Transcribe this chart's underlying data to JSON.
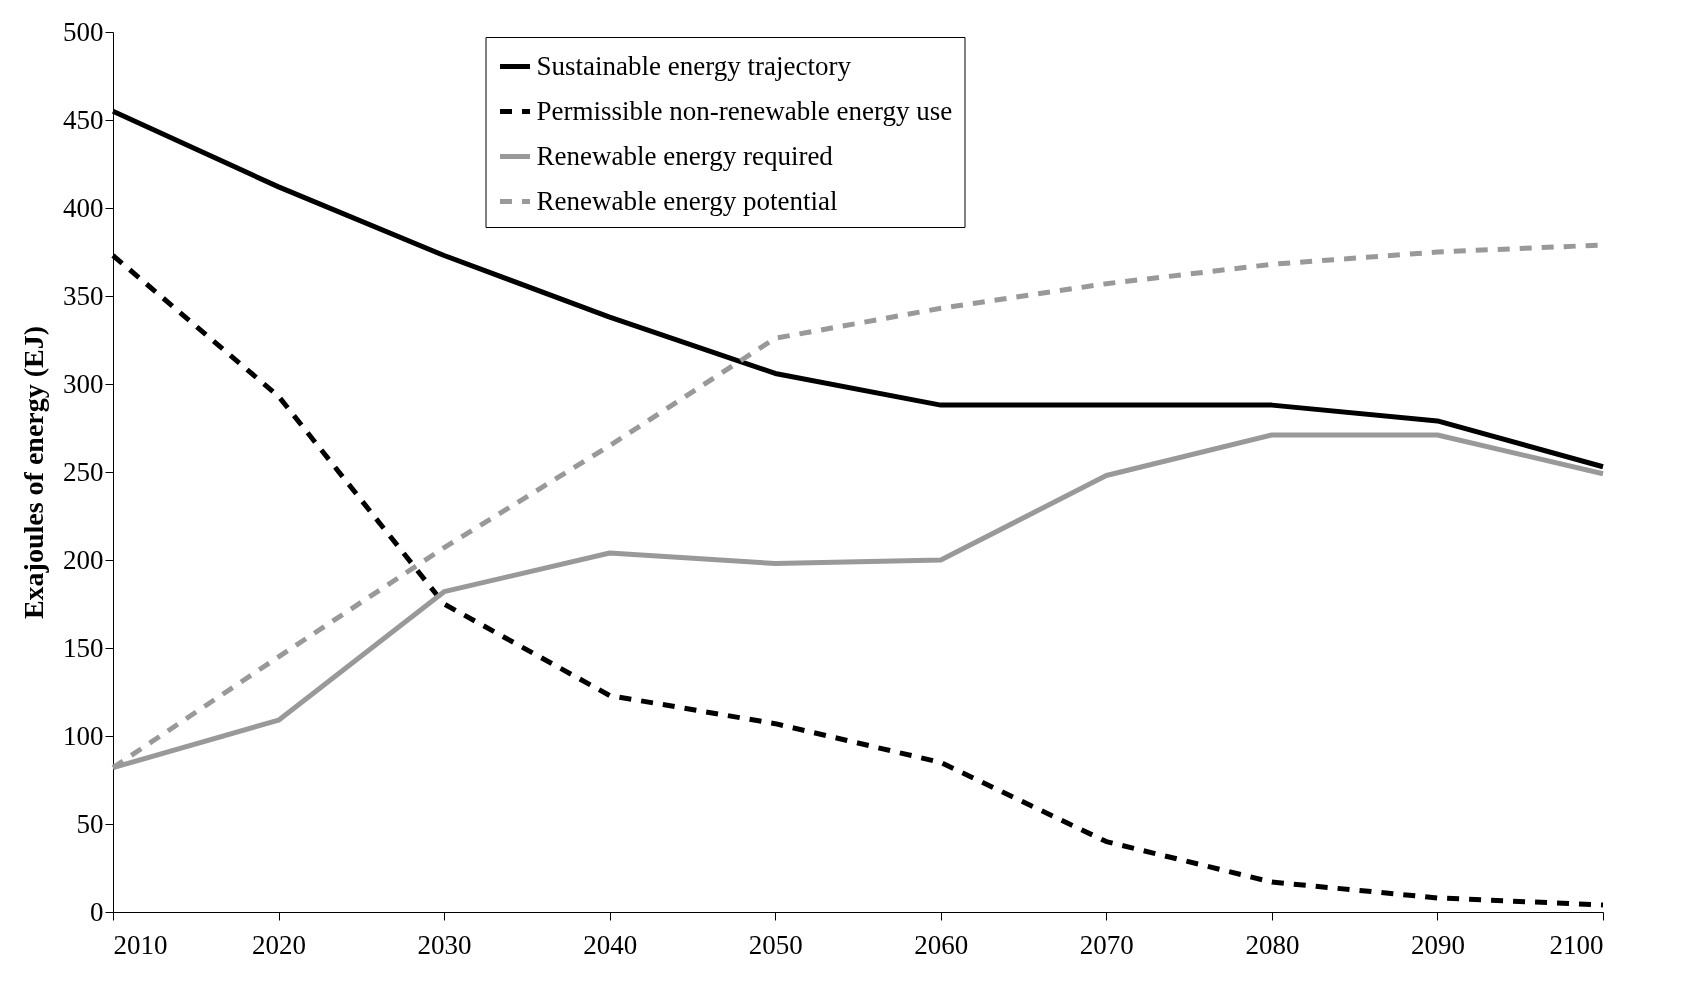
{
  "chart_data": {
    "type": "line",
    "ylabel": "Exajoules of energy (EJ)",
    "x": [
      2010,
      2020,
      2030,
      2040,
      2050,
      2060,
      2070,
      2080,
      2090,
      2100
    ],
    "series": [
      {
        "name": "Sustainable energy trajectory",
        "color": "#000000",
        "line_style": "solid",
        "values": [
          455,
          412,
          373,
          338,
          306,
          288,
          288,
          288,
          279,
          253
        ]
      },
      {
        "name": "Permissible non-renewable energy use",
        "color": "#000000",
        "line_style": "dashed",
        "values": [
          373,
          293,
          175,
          123,
          107,
          85,
          40,
          17,
          8,
          4
        ]
      },
      {
        "name": "Renewable energy required",
        "color": "#999999",
        "line_style": "solid",
        "values": [
          82,
          109,
          182,
          204,
          198,
          200,
          248,
          271,
          271,
          249
        ]
      },
      {
        "name": "Renewable energy potential",
        "color": "#999999",
        "line_style": "dashed",
        "values": [
          82,
          145,
          207,
          265,
          326,
          343,
          357,
          368,
          375,
          379
        ]
      }
    ],
    "xlim": [
      2010,
      2100
    ],
    "xticks": [
      2010,
      2020,
      2030,
      2040,
      2050,
      2060,
      2070,
      2080,
      2090,
      2100
    ],
    "ylim": [
      0,
      500
    ],
    "yticks": [
      0,
      50,
      100,
      150,
      200,
      250,
      300,
      350,
      400,
      450,
      500
    ],
    "grid": false,
    "legend": "top",
    "marker": "none"
  }
}
